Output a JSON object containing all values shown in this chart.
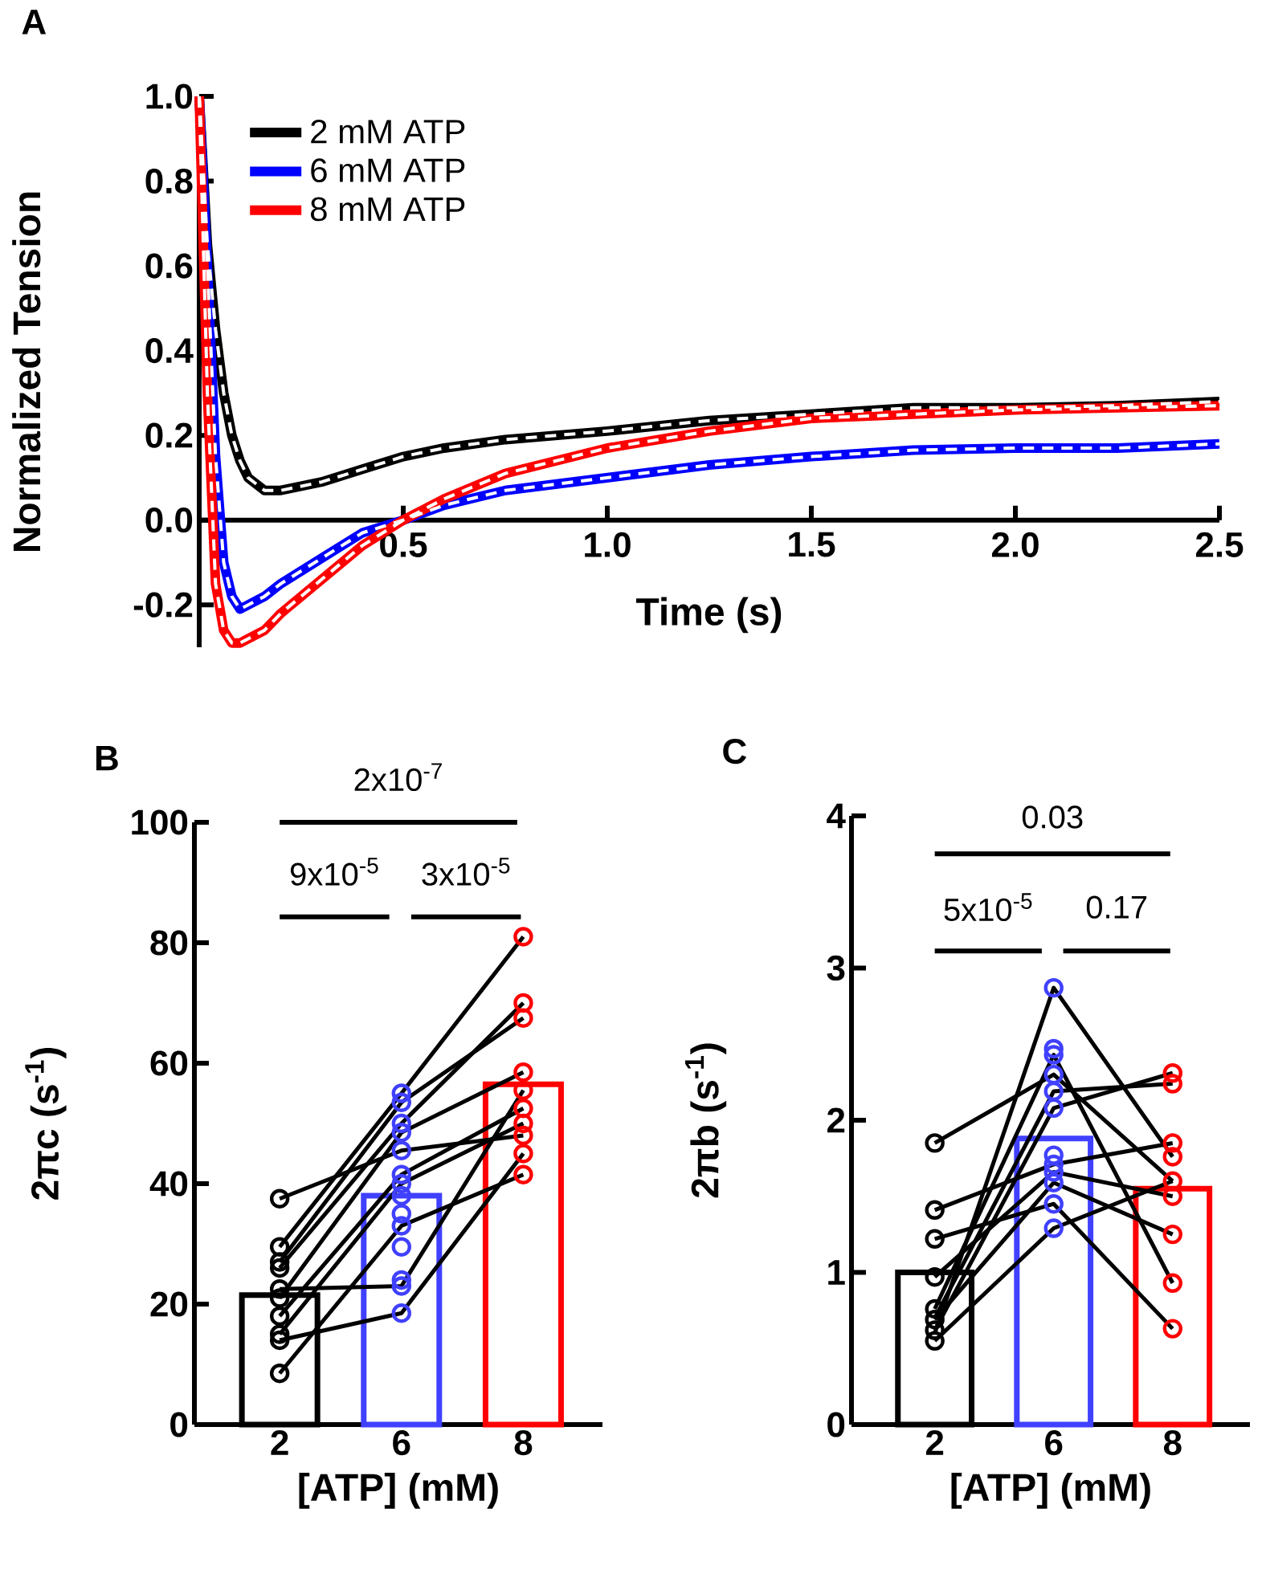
{
  "chart_data": [
    {
      "type": "line",
      "title": "A",
      "xlabel": "Time (s)",
      "ylabel": "Normalized Tension",
      "xlim": [
        0,
        2.5
      ],
      "ylim": [
        -0.3,
        1.0
      ],
      "xticks": [
        {
          "value": 0.5,
          "label": "0.5"
        },
        {
          "value": 1.0,
          "label": "1.0"
        },
        {
          "value": 1.5,
          "label": "1.5"
        },
        {
          "value": 2.0,
          "label": "2.0"
        },
        {
          "value": 2.5,
          "label": "2.5"
        }
      ],
      "yticks": [
        {
          "value": -0.2,
          "label": "-0.2"
        },
        {
          "value": 0.0,
          "label": "0.0"
        },
        {
          "value": 0.2,
          "label": "0.2"
        },
        {
          "value": 0.4,
          "label": "0.4"
        },
        {
          "value": 0.6,
          "label": "0.6"
        },
        {
          "value": 0.8,
          "label": "0.8"
        },
        {
          "value": 1.0,
          "label": "1.0"
        }
      ],
      "legend": "top left",
      "line_style": "solid",
      "x": [
        0,
        0.02,
        0.04,
        0.06,
        0.08,
        0.1,
        0.12,
        0.16,
        0.2,
        0.3,
        0.4,
        0.5,
        0.6,
        0.75,
        1.0,
        1.25,
        1.5,
        1.75,
        2.0,
        2.25,
        2.5
      ],
      "series": [
        {
          "name": "2 mM ATP",
          "color": "#000000",
          "values": [
            1.0,
            0.65,
            0.45,
            0.3,
            0.2,
            0.14,
            0.1,
            0.07,
            0.07,
            0.09,
            0.12,
            0.15,
            0.17,
            0.19,
            0.21,
            0.235,
            0.25,
            0.265,
            0.265,
            0.27,
            0.28
          ]
        },
        {
          "name": "6 mM ATP",
          "color": "#0000ff",
          "values": [
            1.0,
            0.6,
            0.15,
            -0.1,
            -0.18,
            -0.21,
            -0.2,
            -0.18,
            -0.15,
            -0.09,
            -0.03,
            0.0,
            0.035,
            0.07,
            0.1,
            0.13,
            0.15,
            0.165,
            0.17,
            0.17,
            0.18
          ]
        },
        {
          "name": "8 mM ATP",
          "color": "#ff0000",
          "values": [
            1.0,
            0.3,
            -0.15,
            -0.26,
            -0.29,
            -0.29,
            -0.28,
            -0.26,
            -0.22,
            -0.14,
            -0.06,
            0.0,
            0.05,
            0.11,
            0.17,
            0.21,
            0.24,
            0.25,
            0.26,
            0.265,
            0.27
          ]
        },
        {
          "color": "#ffffff",
          "line_style": "dashed",
          "values": [
            1.0,
            0.65,
            0.45,
            0.3,
            0.2,
            0.14,
            0.1,
            0.07,
            0.07,
            0.09,
            0.12,
            0.15,
            0.17,
            0.19,
            0.21,
            0.235,
            0.25,
            0.265,
            0.265,
            0.27,
            0.28
          ]
        },
        {
          "color": "#ffffff",
          "line_style": "dashed",
          "values": [
            1.0,
            0.6,
            0.15,
            -0.1,
            -0.18,
            -0.21,
            -0.2,
            -0.18,
            -0.15,
            -0.09,
            -0.03,
            0.0,
            0.035,
            0.07,
            0.1,
            0.13,
            0.15,
            0.165,
            0.17,
            0.17,
            0.18
          ]
        },
        {
          "color": "#ffffff",
          "line_style": "dashed",
          "values": [
            1.0,
            0.3,
            -0.15,
            -0.26,
            -0.29,
            -0.29,
            -0.28,
            -0.26,
            -0.22,
            -0.14,
            -0.06,
            0.0,
            0.05,
            0.11,
            0.17,
            0.21,
            0.24,
            0.25,
            0.26,
            0.265,
            0.27
          ]
        }
      ]
    },
    {
      "type": "bar",
      "title": "B",
      "xlabel": "[ATP] (mM)",
      "ylabel": "2πc (s$^{-1}$)",
      "categories": [
        "2",
        "6",
        "8"
      ],
      "ylim": [
        0,
        100
      ],
      "yticks": [
        0,
        20,
        40,
        60,
        80,
        100
      ],
      "annotations": [
        "2x10$^{-7}$",
        "9x10$^{-5}$",
        "3x10$^{-5}$"
      ],
      "series": [
        {
          "type": "bar",
          "colors": [
            "#000000",
            "#4040ff",
            "#ff0000"
          ],
          "values": [
            21.5,
            38,
            56.5
          ]
        },
        {
          "type": "line",
          "color": "#000000",
          "marker": "none",
          "values": [
            37.5,
            45.5,
            48
          ]
        },
        {
          "type": "line",
          "color": "#000000",
          "marker": "none",
          "values": [
            29.5,
            55,
            81
          ]
        },
        {
          "type": "line",
          "color": "#000000",
          "marker": "none",
          "values": [
            27,
            53.5,
            67.5
          ]
        },
        {
          "type": "line",
          "color": "#000000",
          "marker": "none",
          "values": [
            26,
            50,
            70
          ]
        },
        {
          "type": "line",
          "color": "#000000",
          "marker": "none",
          "values": [
            22.5,
            23,
            55.5
          ]
        },
        {
          "type": "line",
          "color": "#000000",
          "marker": "none",
          "values": [
            21,
            48.5,
            58.5
          ]
        },
        {
          "type": "line",
          "color": "#000000",
          "marker": "none",
          "values": [
            18,
            41.5,
            52.5
          ]
        },
        {
          "type": "line",
          "color": "#000000",
          "marker": "none",
          "values": [
            15,
            40,
            50
          ]
        },
        {
          "type": "line",
          "color": "#000000",
          "marker": "none",
          "values": [
            14,
            18.5,
            45
          ]
        },
        {
          "type": "line",
          "color": "#000000",
          "marker": "none",
          "values": [
            8.5,
            33,
            41.5
          ]
        },
        {
          "type": "scatter",
          "marker": "circle",
          "color": "#000000",
          "x": [
            "2",
            "2",
            "2",
            "2",
            "2",
            "2",
            "2",
            "2",
            "2",
            "2"
          ],
          "values": [
            37.5,
            29.5,
            27,
            26,
            22.5,
            21,
            18,
            15,
            14,
            8.5
          ]
        },
        {
          "type": "scatter",
          "marker": "circle",
          "color": "#4040ff",
          "x": [
            "6",
            "6",
            "6",
            "6",
            "6",
            "6",
            "6",
            "6",
            "6",
            "6",
            "6",
            "6",
            "6",
            "6"
          ],
          "values": [
            55,
            53.5,
            50,
            48.5,
            45.5,
            41.5,
            40,
            38,
            35,
            33,
            29.5,
            24,
            23,
            18.5
          ]
        },
        {
          "type": "scatter",
          "marker": "circle",
          "color": "#ff0000",
          "x": [
            "8",
            "8",
            "8",
            "8",
            "8",
            "8",
            "8",
            "8",
            "8",
            "8"
          ],
          "values": [
            81,
            70,
            67.5,
            58.5,
            55.5,
            52.5,
            50,
            48,
            45,
            41.5
          ]
        }
      ]
    },
    {
      "type": "bar",
      "title": "C",
      "xlabel": "[ATP] (mM)",
      "ylabel": "2πb (s$^{-1}$)",
      "categories": [
        "2",
        "6",
        "8"
      ],
      "ylim": [
        0,
        4
      ],
      "yticks": [
        0,
        1,
        2,
        3,
        4
      ],
      "annotations": [
        "0.03",
        "5x10$^{-5}$",
        "0.17"
      ],
      "series": [
        {
          "type": "bar",
          "colors": [
            "#000000",
            "#4040ff",
            "#ff0000"
          ],
          "values": [
            1.0,
            1.88,
            1.55
          ]
        },
        {
          "type": "line",
          "color": "#000000",
          "marker": "none",
          "values": [
            1.85,
            2.3,
            1.6
          ]
        },
        {
          "type": "line",
          "color": "#000000",
          "marker": "none",
          "values": [
            1.41,
            1.71,
            1.85
          ]
        },
        {
          "type": "line",
          "color": "#000000",
          "marker": "none",
          "values": [
            1.22,
            1.45,
            0.63
          ]
        },
        {
          "type": "line",
          "color": "#000000",
          "marker": "none",
          "values": [
            0.97,
            1.66,
            1.5
          ]
        },
        {
          "type": "line",
          "color": "#000000",
          "marker": "none",
          "values": [
            0.76,
            2.43,
            0.93
          ]
        },
        {
          "type": "line",
          "color": "#000000",
          "marker": "none",
          "values": [
            0.69,
            1.59,
            1.25
          ]
        },
        {
          "type": "line",
          "color": "#000000",
          "marker": "none",
          "values": [
            0.62,
            2.08,
            2.31
          ]
        },
        {
          "type": "line",
          "color": "#000000",
          "marker": "none",
          "values": [
            0.55,
            1.29,
            1.6
          ]
        },
        {
          "type": "line",
          "color": "#000000",
          "marker": "none",
          "values": [
            0.6,
            2.87,
            1.76
          ]
        },
        {
          "type": "line",
          "color": "#000000",
          "marker": "none",
          "values": [
            0.7,
            2.19,
            2.24
          ]
        },
        {
          "type": "scatter",
          "marker": "circle",
          "color": "#000000",
          "x": [
            "2",
            "2",
            "2",
            "2",
            "2",
            "2",
            "2",
            "2"
          ],
          "values": [
            1.85,
            1.41,
            1.22,
            0.97,
            0.76,
            0.69,
            0.62,
            0.55
          ]
        },
        {
          "type": "scatter",
          "marker": "circle",
          "color": "#4040ff",
          "x": [
            "6",
            "6",
            "6",
            "6",
            "6",
            "6",
            "6",
            "6",
            "6",
            "6",
            "6",
            "6"
          ],
          "values": [
            2.87,
            2.47,
            2.43,
            2.3,
            2.19,
            2.08,
            1.77,
            1.71,
            1.66,
            1.59,
            1.45,
            1.29
          ]
        },
        {
          "type": "scatter",
          "marker": "circle",
          "color": "#ff0000",
          "x": [
            "8",
            "8",
            "8",
            "8",
            "8",
            "8",
            "8",
            "8",
            "8"
          ],
          "values": [
            2.31,
            2.24,
            1.85,
            1.76,
            1.6,
            1.5,
            1.25,
            0.93,
            0.63
          ]
        }
      ]
    }
  ]
}
